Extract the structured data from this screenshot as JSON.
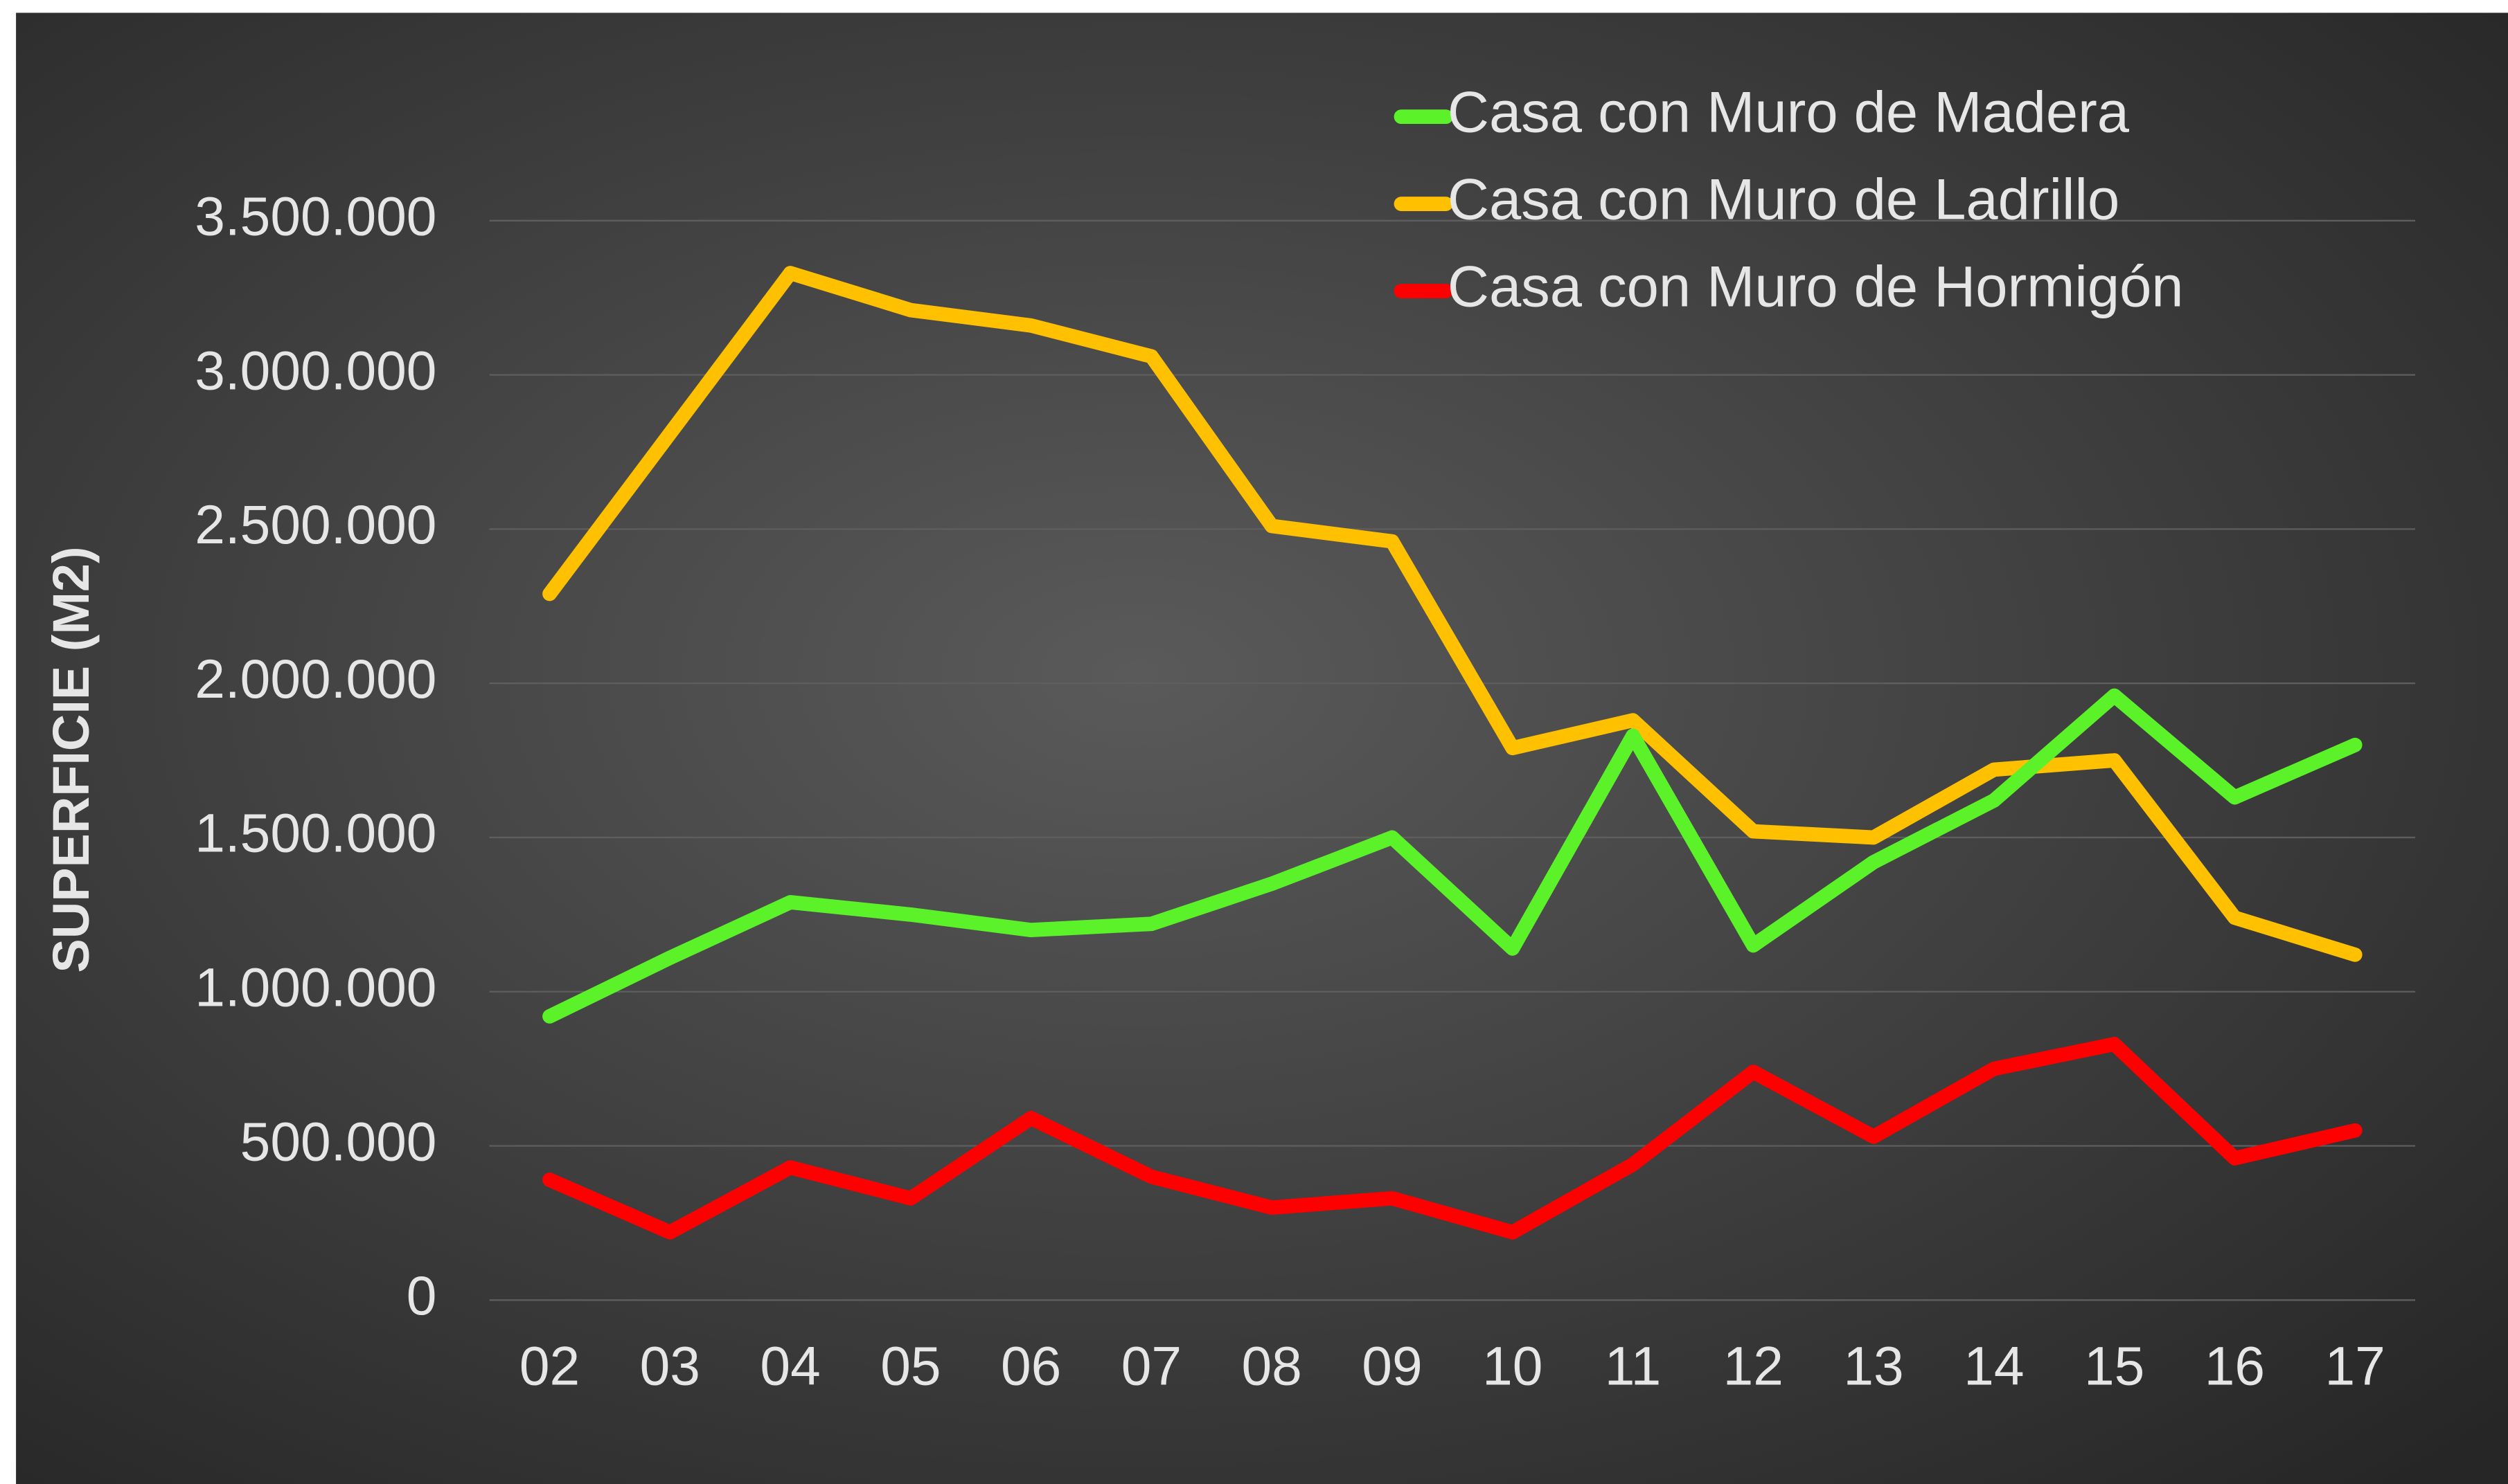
{
  "chart_data": {
    "type": "line",
    "y_label": "SUPERFICIE (M2)",
    "categories": [
      "02",
      "03",
      "04",
      "05",
      "06",
      "07",
      "08",
      "09",
      "10",
      "11",
      "12",
      "13",
      "14",
      "15",
      "16",
      "17"
    ],
    "series": [
      {
        "name": "Casa con Muro de Madera",
        "color": "#5cf22a",
        "values": [
          920000,
          1110000,
          1290000,
          1250000,
          1200000,
          1220000,
          1350000,
          1500000,
          1140000,
          1830000,
          1150000,
          1420000,
          1620000,
          1960000,
          1630000,
          1800000
        ]
      },
      {
        "name": "Casa con Muro de Ladrillo",
        "color": "#ffc000",
        "values": [
          2290000,
          2810000,
          3330000,
          3210000,
          3160000,
          3060000,
          2510000,
          2460000,
          1790000,
          1880000,
          1520000,
          1500000,
          1720000,
          1750000,
          1240000,
          1120000
        ]
      },
      {
        "name": "Casa con Muro de Hormigón",
        "color": "#ff0000",
        "values": [
          390000,
          220000,
          430000,
          330000,
          590000,
          400000,
          300000,
          330000,
          220000,
          440000,
          740000,
          530000,
          750000,
          830000,
          460000,
          550000
        ]
      }
    ],
    "ylim": [
      0,
      3500000
    ],
    "yticks": [
      0,
      {
        "value": 500000,
        "label": "500.000"
      },
      {
        "value": 1000000,
        "label": "1.000.000"
      },
      {
        "value": 1500000,
        "label": "1.500.000"
      },
      {
        "value": 2000000,
        "label": "2.000.000"
      },
      {
        "value": 2500000,
        "label": "2.500.000"
      },
      {
        "value": 3000000,
        "label": "3.000.000"
      },
      {
        "value": 3500000,
        "label": "3.500.000"
      }
    ],
    "grid": true,
    "legend": "top-right"
  }
}
